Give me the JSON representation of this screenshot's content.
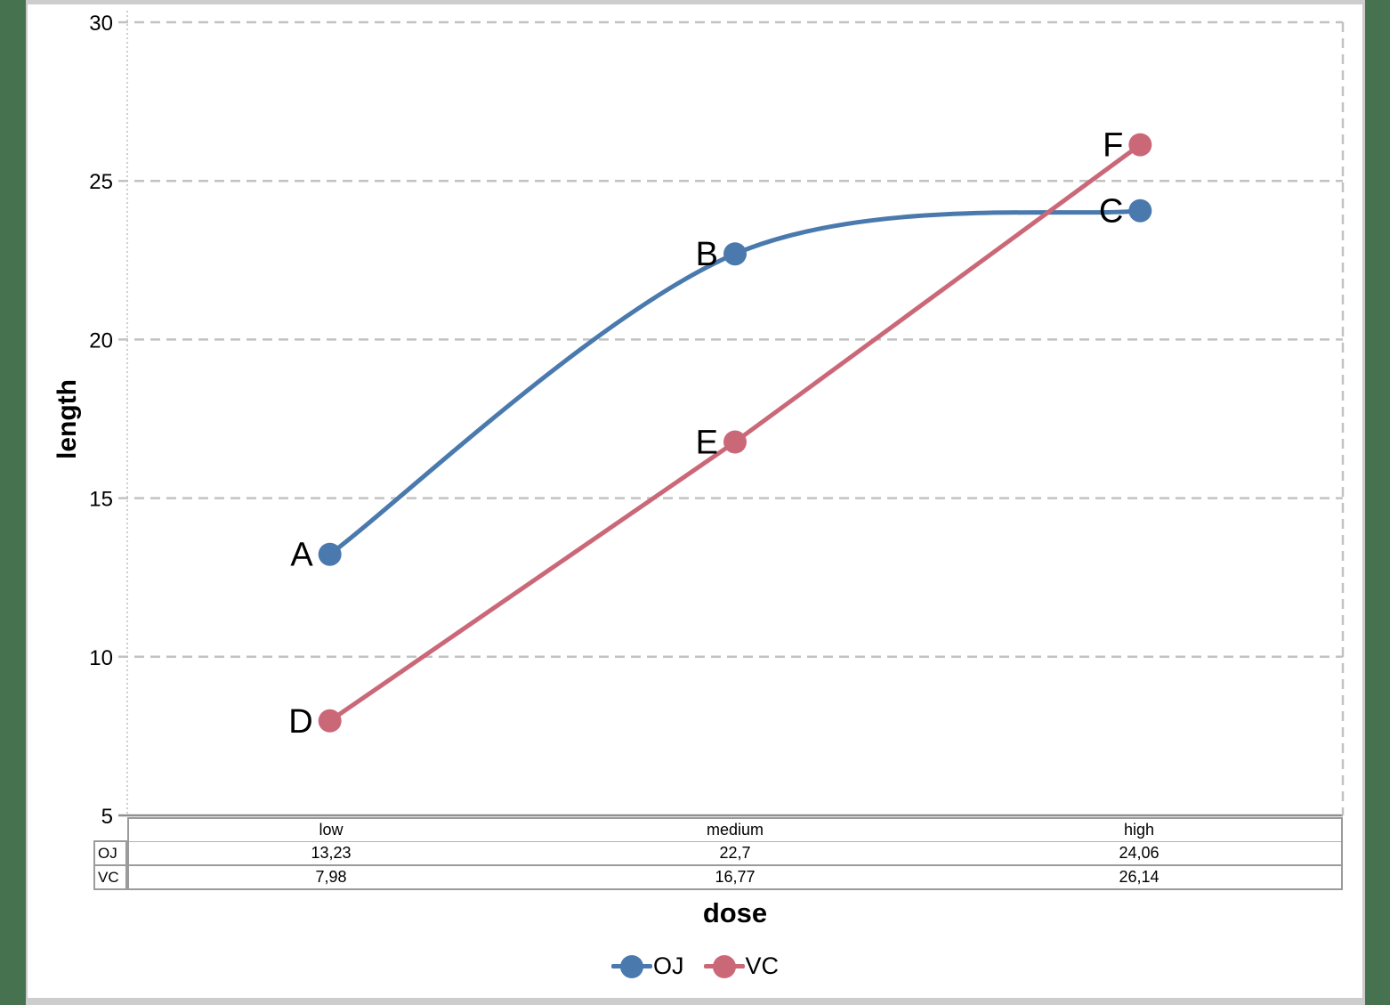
{
  "frame": {
    "background_color": "#47724f",
    "page_color": "#ffffff",
    "edge_color": "#cdcdcd"
  },
  "chart_data": {
    "type": "line",
    "title": "",
    "xlabel": "dose",
    "ylabel": "length",
    "x_categories": [
      "low",
      "medium",
      "high"
    ],
    "series": [
      {
        "name": "OJ",
        "values": [
          13.23,
          22.7,
          24.06
        ],
        "color": "#4a79ae",
        "point_labels": [
          "A",
          "B",
          "C"
        ],
        "smooth": true
      },
      {
        "name": "VC",
        "values": [
          7.98,
          16.77,
          26.14
        ],
        "color": "#cb6878",
        "point_labels": [
          "D",
          "E",
          "F"
        ],
        "smooth": false
      }
    ],
    "ylim": [
      5,
      30
    ],
    "yticks": [
      5,
      10,
      15,
      20,
      25,
      30
    ],
    "grid": "horizontal dashed gridlines",
    "legend_position": "bottom-center"
  },
  "data_table": {
    "columns": [
      "low",
      "medium",
      "high"
    ],
    "rows": [
      {
        "label": "OJ",
        "values": [
          "13,23",
          "22,7",
          "24,06"
        ]
      },
      {
        "label": "VC",
        "values": [
          "7,98",
          "16,77",
          "26,14"
        ]
      }
    ]
  }
}
